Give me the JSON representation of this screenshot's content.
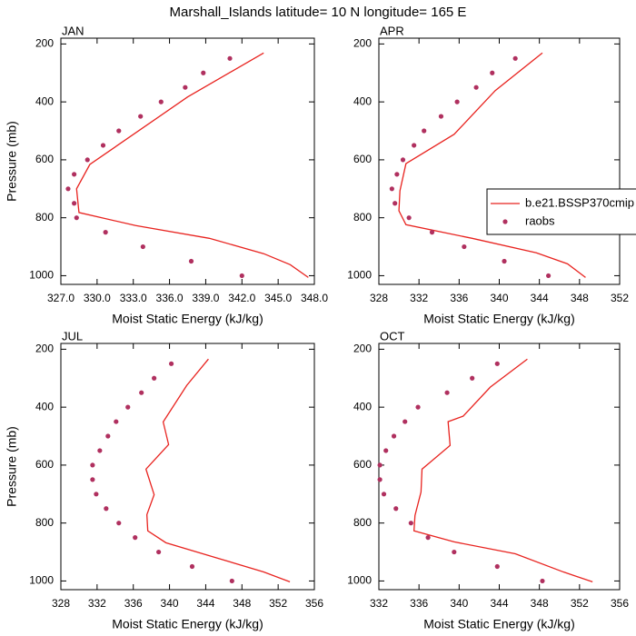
{
  "title": "Marshall_Islands  latitude= 10 N  longitude= 165 E",
  "chart_data": [
    {
      "type": "line",
      "title": "JAN",
      "x_label": "Moist Static Energy (kJ/kg)",
      "y_label": "Pressure (mb)",
      "xlim": [
        327,
        348
      ],
      "xticks": [
        {
          "value": 327,
          "label": "327.0"
        },
        {
          "value": 330,
          "label": "330.0"
        },
        {
          "value": 333,
          "label": "333.0"
        },
        {
          "value": 336,
          "label": "336.0"
        },
        {
          "value": 339,
          "label": "339.0"
        },
        {
          "value": 342,
          "label": "342.0"
        },
        {
          "value": 345,
          "label": "345.0"
        },
        {
          "value": 348,
          "label": "348.0"
        }
      ],
      "ylim": [
        1030,
        180
      ],
      "yticks": [
        200,
        400,
        600,
        800,
        1000
      ],
      "series": [
        {
          "style": "line",
          "color": "#e8231f",
          "x": [
            343.8,
            337.5,
            329.4,
            328.3,
            328.5,
            333.2,
            339.3,
            343.8,
            346.0,
            347.5
          ],
          "y": [
            231,
            383,
            616,
            700,
            782,
            827,
            871,
            924,
            962,
            1006
          ]
        },
        {
          "style": "markers",
          "color": "#b0305f",
          "x": [
            341.0,
            338.8,
            337.3,
            335.3,
            333.6,
            331.8,
            330.5,
            329.2,
            328.1,
            327.6,
            328.1,
            328.3,
            330.7,
            333.8,
            337.8,
            342.0
          ],
          "y": [
            250,
            300,
            350,
            400,
            450,
            500,
            550,
            600,
            650,
            700,
            750,
            800,
            850,
            900,
            950,
            1000
          ]
        }
      ]
    },
    {
      "type": "line",
      "title": "APR",
      "x_label": "Moist Static Energy (kJ/kg)",
      "xlim": [
        328,
        352
      ],
      "xticks": [
        328,
        332,
        336,
        340,
        344,
        348,
        352
      ],
      "ylim": [
        1030,
        180
      ],
      "yticks": [
        200,
        400,
        600,
        800,
        1000
      ],
      "legend": "right",
      "series": [
        {
          "name": "b.e21.BSSP370cmip",
          "style": "line",
          "color": "#e8231f",
          "x": [
            344.3,
            339.6,
            335.5,
            330.7,
            330.1,
            330.0,
            330.7,
            337.3,
            343.7,
            346.8,
            348.6
          ],
          "y": [
            231,
            361,
            512,
            613,
            707,
            776,
            824,
            871,
            921,
            959,
            1006
          ]
        },
        {
          "name": "raobs",
          "style": "markers",
          "color": "#b0305f",
          "x": [
            341.6,
            339.3,
            337.7,
            335.8,
            334.2,
            332.5,
            331.5,
            330.4,
            329.8,
            329.3,
            329.6,
            331.0,
            333.3,
            336.5,
            340.5,
            344.9
          ],
          "y": [
            250,
            300,
            350,
            400,
            450,
            500,
            550,
            600,
            650,
            700,
            750,
            800,
            850,
            900,
            950,
            1000
          ]
        }
      ]
    },
    {
      "type": "line",
      "title": "JUL",
      "x_label": "Moist Static Energy (kJ/kg)",
      "y_label": "Pressure (mb)",
      "xlim": [
        328,
        356
      ],
      "xticks": [
        328,
        332,
        336,
        340,
        344,
        348,
        352,
        356
      ],
      "ylim": [
        1030,
        180
      ],
      "yticks": [
        200,
        400,
        600,
        800,
        1000
      ],
      "series": [
        {
          "style": "line",
          "color": "#e8231f",
          "x": [
            344.3,
            341.9,
            339.3,
            339.9,
            337.4,
            338.3,
            337.5,
            337.6,
            339.6,
            345.4,
            350.4,
            353.3
          ],
          "y": [
            234,
            325,
            451,
            529,
            614,
            702,
            771,
            827,
            868,
            922,
            969,
            1003
          ]
        },
        {
          "style": "markers",
          "color": "#b0305f",
          "x": [
            340.2,
            338.3,
            336.9,
            335.4,
            334.1,
            333.2,
            332.3,
            331.5,
            331.5,
            331.9,
            333.0,
            334.4,
            336.2,
            338.8,
            342.5,
            346.9
          ],
          "y": [
            250,
            300,
            350,
            400,
            450,
            500,
            550,
            600,
            650,
            700,
            750,
            800,
            850,
            900,
            950,
            1000
          ]
        }
      ]
    },
    {
      "type": "line",
      "title": "OCT",
      "x_label": "Moist Static Energy (kJ/kg)",
      "xlim": [
        332,
        356
      ],
      "xticks": [
        332,
        336,
        340,
        344,
        348,
        352,
        356
      ],
      "ylim": [
        1030,
        180
      ],
      "yticks": [
        200,
        400,
        600,
        800,
        1000
      ],
      "series": [
        {
          "style": "line",
          "color": "#e8231f",
          "x": [
            346.8,
            343.1,
            340.4,
            338.9,
            339.1,
            336.3,
            336.2,
            335.6,
            335.5,
            339.5,
            345.6,
            350.4,
            353.3
          ],
          "y": [
            234,
            331,
            431,
            450,
            532,
            614,
            693,
            774,
            827,
            865,
            906,
            969,
            1003
          ]
        },
        {
          "style": "markers",
          "color": "#b0305f",
          "x": [
            343.8,
            341.3,
            338.8,
            335.9,
            334.6,
            333.5,
            332.7,
            332.1,
            332.1,
            332.5,
            333.7,
            335.2,
            336.9,
            339.5,
            343.8,
            348.3
          ],
          "y": [
            250,
            300,
            350,
            400,
            450,
            500,
            550,
            600,
            650,
            700,
            750,
            800,
            850,
            900,
            950,
            1000
          ]
        }
      ]
    }
  ]
}
